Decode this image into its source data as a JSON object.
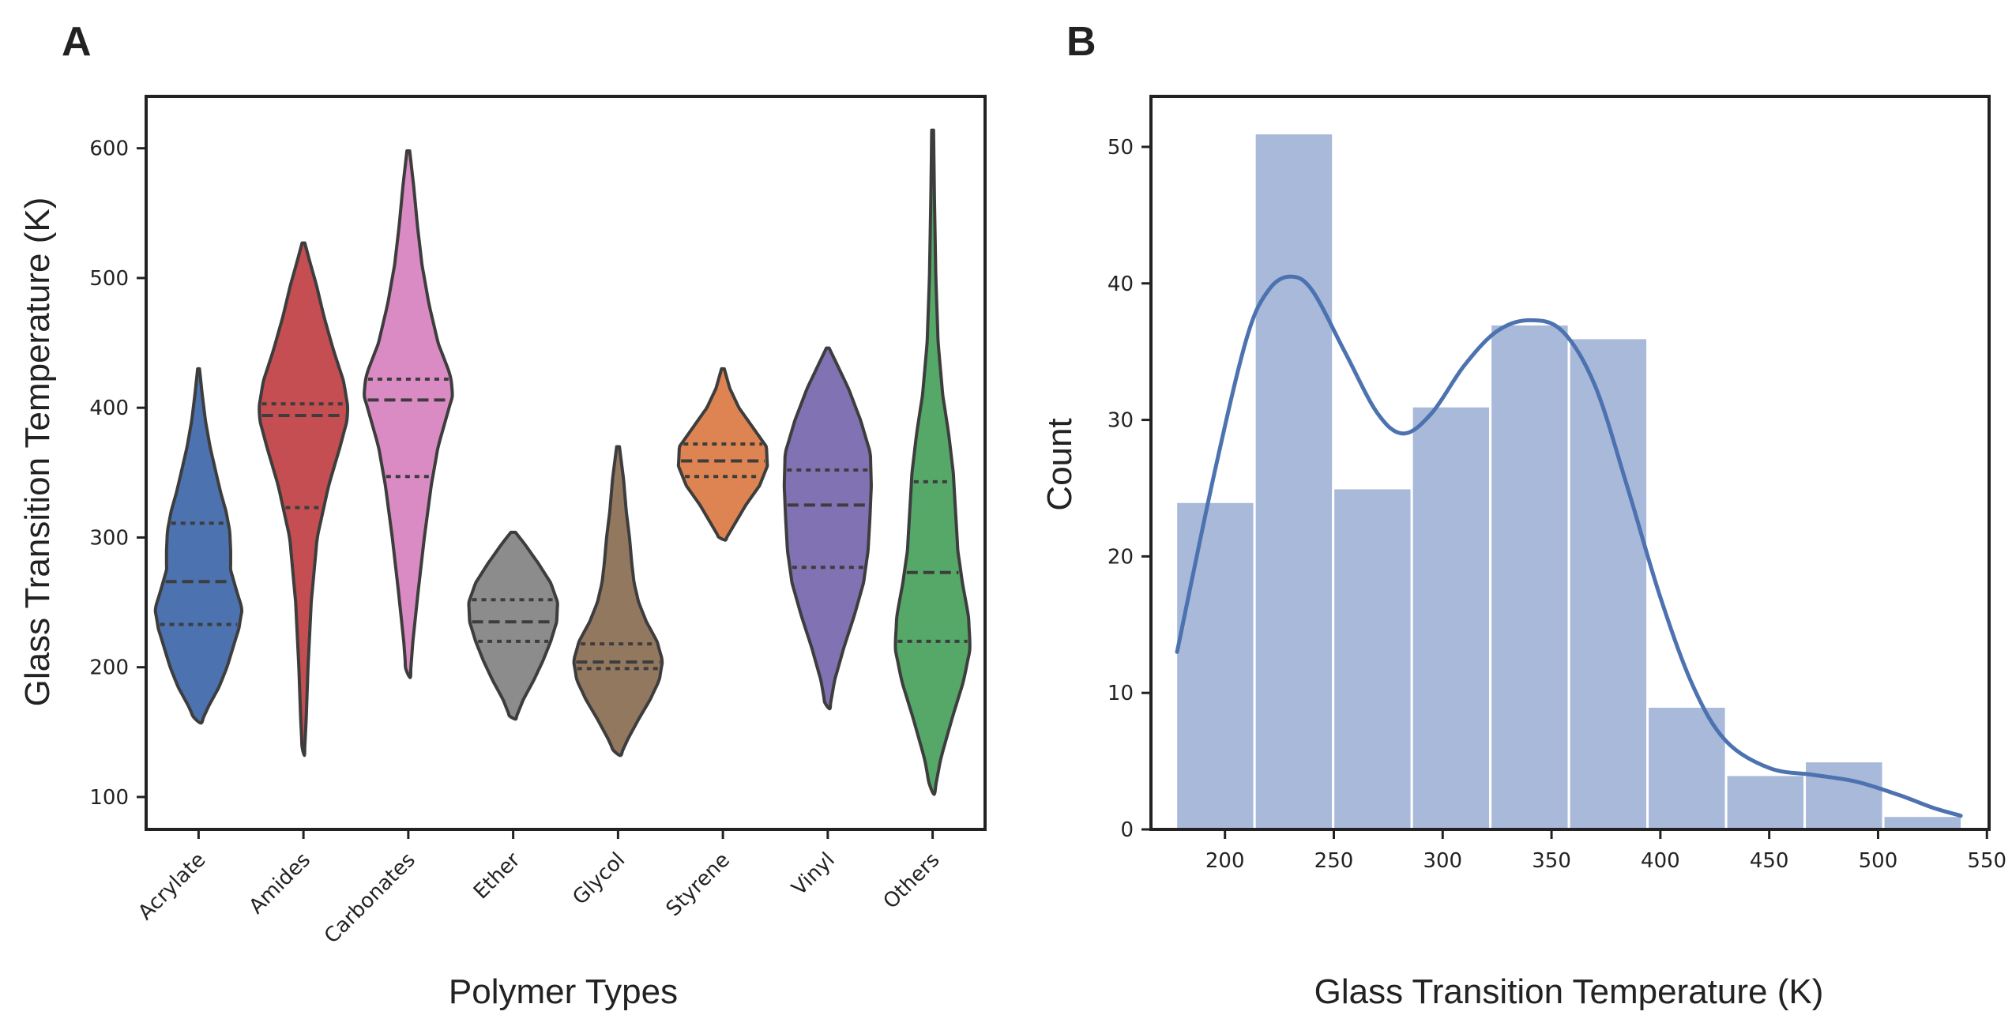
{
  "chart_data": [
    {
      "panel": "A",
      "type": "violin",
      "xlabel": "Polymer Types",
      "ylabel": "Glass Transition Temperature (K)",
      "ylim": [
        75,
        640
      ],
      "yticks": [
        100,
        200,
        300,
        400,
        500,
        600
      ],
      "categories": [
        {
          "name": "Acrylate",
          "color": "#4c72b0",
          "min": 157,
          "max": 430,
          "q1": 233,
          "median": 266,
          "q3": 311,
          "profile": [
            [
              157,
              0.05
            ],
            [
              170,
              0.22
            ],
            [
              185,
              0.45
            ],
            [
              200,
              0.62
            ],
            [
              215,
              0.75
            ],
            [
              230,
              0.88
            ],
            [
              245,
              0.95
            ],
            [
              260,
              0.82
            ],
            [
              275,
              0.7
            ],
            [
              290,
              0.7
            ],
            [
              305,
              0.68
            ],
            [
              320,
              0.6
            ],
            [
              335,
              0.48
            ],
            [
              350,
              0.38
            ],
            [
              370,
              0.25
            ],
            [
              390,
              0.15
            ],
            [
              410,
              0.08
            ],
            [
              430,
              0.02
            ]
          ]
        },
        {
          "name": "Amides",
          "color": "#c44e52",
          "min": 132,
          "max": 527,
          "q1": 323,
          "median": 394,
          "q3": 403,
          "profile": [
            [
              132,
              0.02
            ],
            [
              160,
              0.06
            ],
            [
              200,
              0.1
            ],
            [
              250,
              0.17
            ],
            [
              300,
              0.3
            ],
            [
              340,
              0.55
            ],
            [
              370,
              0.8
            ],
            [
              390,
              0.95
            ],
            [
              400,
              0.97
            ],
            [
              420,
              0.88
            ],
            [
              445,
              0.65
            ],
            [
              470,
              0.45
            ],
            [
              495,
              0.28
            ],
            [
              515,
              0.12
            ],
            [
              527,
              0.03
            ]
          ]
        },
        {
          "name": "Carbonates",
          "color": "#da8bc3",
          "min": 192,
          "max": 598,
          "q1": 347,
          "median": 406,
          "q3": 422,
          "profile": [
            [
              192,
              0.04
            ],
            [
              220,
              0.1
            ],
            [
              260,
              0.22
            ],
            [
              300,
              0.35
            ],
            [
              340,
              0.5
            ],
            [
              370,
              0.65
            ],
            [
              395,
              0.85
            ],
            [
              410,
              0.97
            ],
            [
              425,
              0.92
            ],
            [
              450,
              0.65
            ],
            [
              480,
              0.45
            ],
            [
              510,
              0.3
            ],
            [
              540,
              0.2
            ],
            [
              570,
              0.12
            ],
            [
              598,
              0.03
            ]
          ]
        },
        {
          "name": "Ether",
          "color": "#8c8c8c",
          "min": 160,
          "max": 304,
          "q1": 220,
          "median": 235,
          "q3": 252,
          "profile": [
            [
              160,
              0.05
            ],
            [
              175,
              0.22
            ],
            [
              190,
              0.45
            ],
            [
              205,
              0.65
            ],
            [
              220,
              0.82
            ],
            [
              235,
              0.95
            ],
            [
              250,
              0.97
            ],
            [
              265,
              0.82
            ],
            [
              280,
              0.55
            ],
            [
              295,
              0.25
            ],
            [
              304,
              0.05
            ]
          ]
        },
        {
          "name": "Glycol",
          "color": "#937860",
          "min": 132,
          "max": 370,
          "q1": 199,
          "median": 204,
          "q3": 218,
          "profile": [
            [
              132,
              0.05
            ],
            [
              145,
              0.22
            ],
            [
              160,
              0.45
            ],
            [
              175,
              0.7
            ],
            [
              190,
              0.9
            ],
            [
              205,
              0.97
            ],
            [
              220,
              0.85
            ],
            [
              235,
              0.62
            ],
            [
              250,
              0.45
            ],
            [
              265,
              0.35
            ],
            [
              280,
              0.3
            ],
            [
              300,
              0.25
            ],
            [
              320,
              0.18
            ],
            [
              345,
              0.12
            ],
            [
              370,
              0.03
            ]
          ]
        },
        {
          "name": "Styrene",
          "color": "#dd8452",
          "min": 298,
          "max": 430,
          "q1": 347,
          "median": 359,
          "q3": 372,
          "profile": [
            [
              298,
              0.05
            ],
            [
              310,
              0.25
            ],
            [
              325,
              0.5
            ],
            [
              340,
              0.8
            ],
            [
              355,
              0.97
            ],
            [
              370,
              0.95
            ],
            [
              385,
              0.65
            ],
            [
              400,
              0.35
            ],
            [
              415,
              0.15
            ],
            [
              430,
              0.03
            ]
          ]
        },
        {
          "name": "Vinyl",
          "color": "#8172b3",
          "min": 168,
          "max": 446,
          "q1": 277,
          "median": 325,
          "q3": 352,
          "profile": [
            [
              168,
              0.04
            ],
            [
              190,
              0.15
            ],
            [
              215,
              0.35
            ],
            [
              240,
              0.58
            ],
            [
              265,
              0.78
            ],
            [
              290,
              0.88
            ],
            [
              315,
              0.92
            ],
            [
              340,
              0.95
            ],
            [
              365,
              0.93
            ],
            [
              390,
              0.72
            ],
            [
              415,
              0.45
            ],
            [
              435,
              0.18
            ],
            [
              446,
              0.03
            ]
          ]
        },
        {
          "name": "Others",
          "color": "#55a868",
          "min": 102,
          "max": 614,
          "q1": 220,
          "median": 273,
          "q3": 343,
          "profile": [
            [
              102,
              0.03
            ],
            [
              130,
              0.18
            ],
            [
              160,
              0.42
            ],
            [
              190,
              0.68
            ],
            [
              215,
              0.82
            ],
            [
              240,
              0.78
            ],
            [
              265,
              0.65
            ],
            [
              290,
              0.55
            ],
            [
              320,
              0.5
            ],
            [
              350,
              0.45
            ],
            [
              380,
              0.35
            ],
            [
              410,
              0.22
            ],
            [
              450,
              0.12
            ],
            [
              500,
              0.07
            ],
            [
              560,
              0.04
            ],
            [
              614,
              0.02
            ]
          ]
        }
      ]
    },
    {
      "panel": "B",
      "type": "histogram",
      "xlabel": "Glass Transition Temperature (K)",
      "ylabel": "Count",
      "xlim": [
        166,
        551
      ],
      "ylim": [
        0,
        53.7
      ],
      "xticks": [
        200,
        250,
        300,
        350,
        400,
        450,
        500,
        550
      ],
      "yticks": [
        0,
        10,
        20,
        30,
        40,
        50
      ],
      "color": "#a8b9d9",
      "kde_color": "#4c72b0",
      "bins": [
        {
          "x0": 177.5,
          "x1": 213.6,
          "count": 24
        },
        {
          "x0": 213.6,
          "x1": 249.7,
          "count": 51
        },
        {
          "x0": 249.7,
          "x1": 285.8,
          "count": 25
        },
        {
          "x0": 285.8,
          "x1": 321.9,
          "count": 31
        },
        {
          "x0": 321.9,
          "x1": 358.0,
          "count": 37
        },
        {
          "x0": 358.0,
          "x1": 394.1,
          "count": 36
        },
        {
          "x0": 394.1,
          "x1": 430.2,
          "count": 9
        },
        {
          "x0": 430.2,
          "x1": 466.3,
          "count": 4
        },
        {
          "x0": 466.3,
          "x1": 502.4,
          "count": 5
        },
        {
          "x0": 502.4,
          "x1": 538.5,
          "count": 1
        }
      ],
      "kde": [
        [
          178,
          13
        ],
        [
          195,
          26
        ],
        [
          210,
          36
        ],
        [
          220,
          39.5
        ],
        [
          230,
          40.5
        ],
        [
          240,
          39.5
        ],
        [
          255,
          35
        ],
        [
          270,
          30.5
        ],
        [
          282,
          29
        ],
        [
          295,
          30.5
        ],
        [
          310,
          34
        ],
        [
          325,
          36.5
        ],
        [
          340,
          37.3
        ],
        [
          355,
          36.5
        ],
        [
          370,
          32.5
        ],
        [
          385,
          25
        ],
        [
          400,
          17
        ],
        [
          415,
          10.5
        ],
        [
          430,
          6.5
        ],
        [
          450,
          4.5
        ],
        [
          470,
          4
        ],
        [
          490,
          3.5
        ],
        [
          510,
          2.5
        ],
        [
          525,
          1.6
        ],
        [
          538,
          1
        ]
      ]
    }
  ]
}
